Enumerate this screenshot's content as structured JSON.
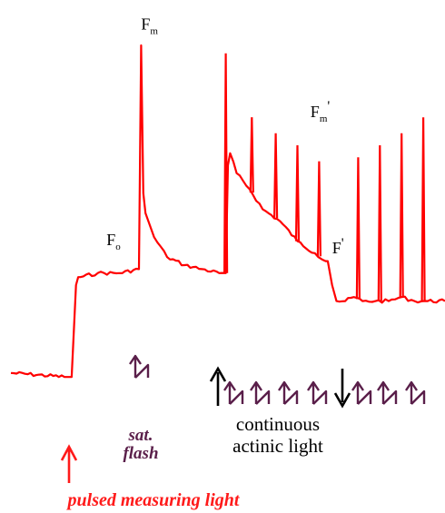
{
  "chart_data": {
    "type": "line",
    "title": "",
    "xlabel": "",
    "ylabel": "",
    "grid": false,
    "legend": "none",
    "trace_color": "#ff0000",
    "arrow_actinic_color": "#000000",
    "flash_symbol_color": "#5a1f4a",
    "measuring_label_color": "#ff1a1a",
    "x_units": "arbitrary time",
    "y_units": "arbitrary fluorescence",
    "xlim": [
      0,
      100
    ],
    "ylim": [
      0,
      100
    ],
    "series": [
      {
        "x": [
          0,
          13,
          14,
          15,
          15.5,
          16,
          20,
          25,
          29.5,
          30,
          30.5,
          31,
          33,
          36,
          40,
          44,
          48,
          49.5,
          50,
          50.5,
          52,
          55,
          58,
          62,
          66,
          70,
          72.5,
          73,
          74,
          75,
          77,
          79,
          81,
          84,
          87,
          90,
          93,
          96,
          100
        ],
        "y": [
          18,
          17,
          17,
          40,
          42,
          42,
          43,
          43,
          44,
          100,
          63,
          58,
          52,
          47,
          45,
          44,
          43,
          43,
          70,
          73,
          68,
          64,
          59,
          56,
          51,
          48,
          46,
          46,
          40,
          36,
          36,
          37,
          36,
          36,
          36,
          37,
          36,
          36,
          36
        ]
      }
    ],
    "spikes": [
      {
        "x": 49.5,
        "peak": 98
      },
      {
        "x": 55.5,
        "peak": 82
      },
      {
        "x": 61,
        "peak": 78
      },
      {
        "x": 66,
        "peak": 75
      },
      {
        "x": 71,
        "peak": 71
      },
      {
        "x": 80,
        "peak": 72
      },
      {
        "x": 85,
        "peak": 75
      },
      {
        "x": 90,
        "peak": 78
      },
      {
        "x": 95,
        "peak": 82
      }
    ],
    "point_labels": [
      {
        "text": "F",
        "sub": "o",
        "sup": "",
        "x": 22,
        "y": 50
      },
      {
        "text": "F",
        "sub": "m",
        "sup": "",
        "x": 30,
        "y": 104
      },
      {
        "text": "F",
        "sub": "m",
        "sup": "'",
        "x": 69,
        "y": 82
      },
      {
        "text": "F",
        "sub": "",
        "sup": "'",
        "x": 74,
        "y": 48
      }
    ],
    "flash_markers_x": [
      30,
      51.5,
      57.5,
      63.5,
      70,
      76,
      81,
      87,
      93
    ],
    "actinic_on_x": 49,
    "actinic_off_x": 77,
    "measuring_on_x": 15
  },
  "annotations": {
    "sat_flash_line1": "sat.",
    "sat_flash_line2": "flash",
    "actinic_line1": "continuous",
    "actinic_line2": "actinic light",
    "measuring_label": "pulsed measuring light"
  }
}
